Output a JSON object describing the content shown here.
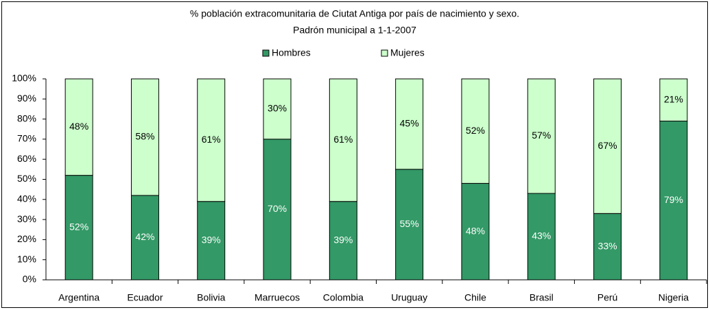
{
  "chart_data": {
    "type": "stacked_bar",
    "title": "% población extracomunitaria de Ciutat Antiga por país de nacimiento y sexo.",
    "subtitle": "Padrón municipal a 1-1-2007",
    "categories": [
      "Argentina",
      "Ecuador",
      "Bolivia",
      "Marruecos",
      "Colombia",
      "Uruguay",
      "Chile",
      "Brasil",
      "Perú",
      "Nigeria"
    ],
    "series": [
      {
        "name": "Hombres",
        "color": "#339966",
        "label_color": "#ffffff",
        "values": [
          52,
          42,
          39,
          70,
          39,
          55,
          48,
          43,
          33,
          79
        ],
        "value_labels": [
          "52%",
          "42%",
          "39%",
          "70%",
          "39%",
          "55%",
          "48%",
          "43%",
          "33%",
          "79%"
        ]
      },
      {
        "name": "Mujeres",
        "color": "#ccffcc",
        "label_color": "#000000",
        "values": [
          48,
          58,
          61,
          30,
          61,
          45,
          52,
          57,
          67,
          21
        ],
        "value_labels": [
          "48%",
          "58%",
          "61%",
          "30%",
          "61%",
          "45%",
          "52%",
          "57%",
          "67%",
          "21%"
        ]
      }
    ],
    "ylim": [
      0,
      100
    ],
    "yticks": [
      {
        "value": 0,
        "label": "0%"
      },
      {
        "value": 10,
        "label": "10%"
      },
      {
        "value": 20,
        "label": "20%"
      },
      {
        "value": 30,
        "label": "30%"
      },
      {
        "value": 40,
        "label": "40%"
      },
      {
        "value": 50,
        "label": "50%"
      },
      {
        "value": 60,
        "label": "60%"
      },
      {
        "value": 70,
        "label": "70%"
      },
      {
        "value": 80,
        "label": "80%"
      },
      {
        "value": 90,
        "label": "90%"
      },
      {
        "value": 100,
        "label": "100%"
      }
    ],
    "legend": "top"
  }
}
